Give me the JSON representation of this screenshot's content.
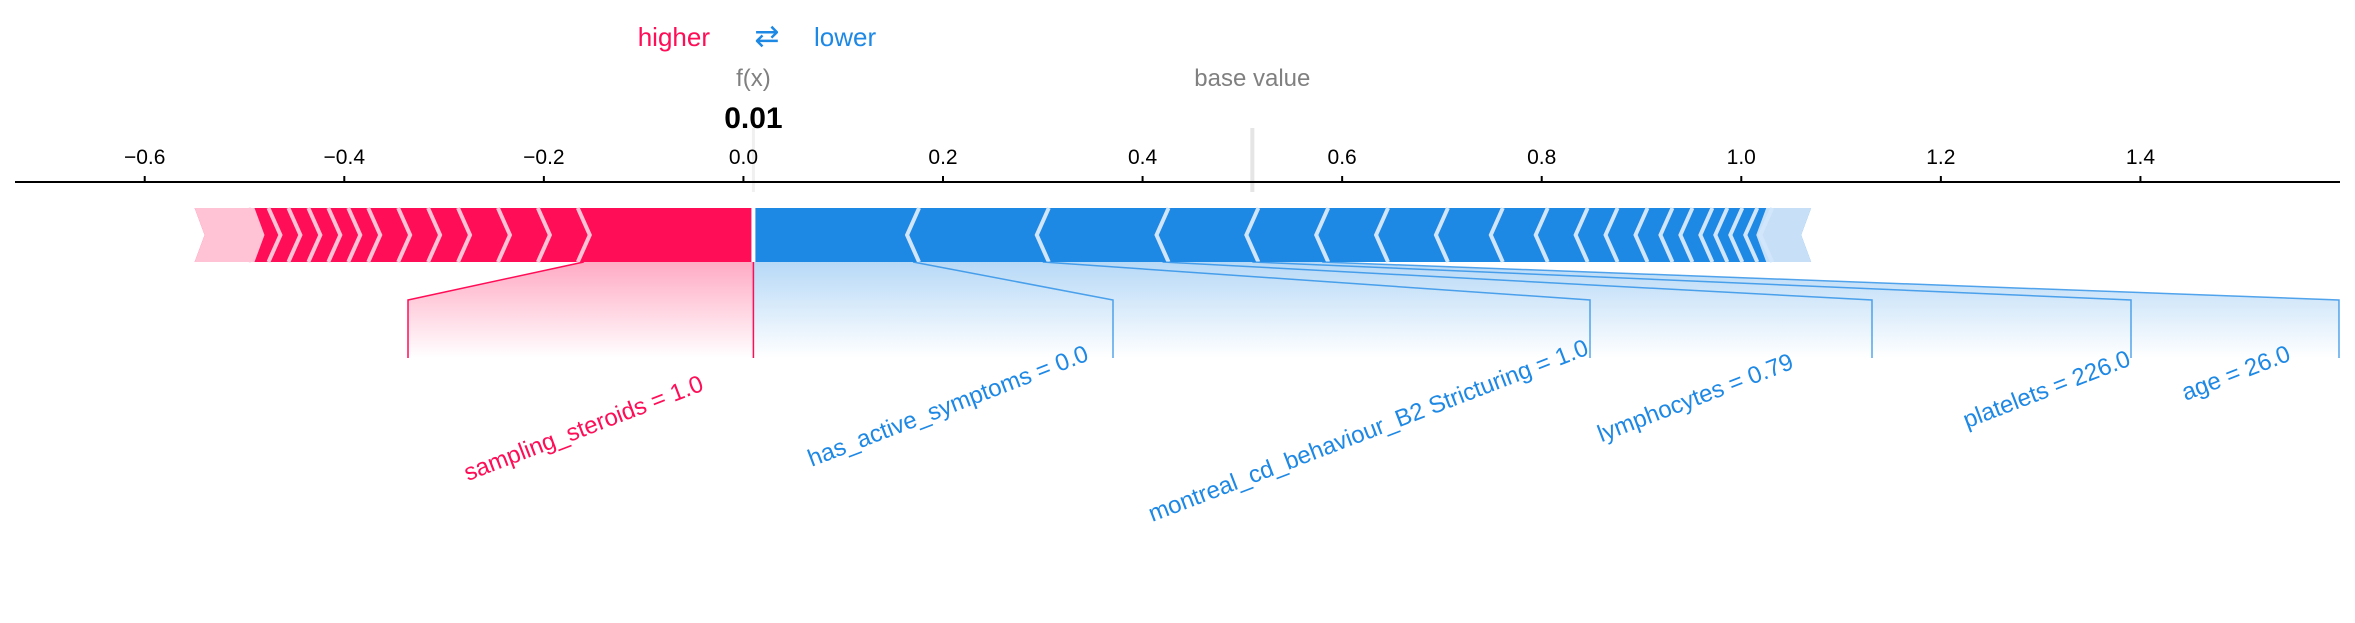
{
  "legend": {
    "higher_label": "higher",
    "lower_label": "lower",
    "arrows_glyph": "⇄",
    "higher_color": "#ff0d57",
    "lower_color": "#1e88e5"
  },
  "output": {
    "fx_label": "f(x)",
    "fx_value_label": "0.01",
    "base_value_label": "base value"
  },
  "chart_data": {
    "type": "force",
    "output_value": 0.01,
    "base_value": 0.51,
    "xlim": [
      -0.73,
      1.6
    ],
    "ticks": [
      -0.6,
      -0.4,
      -0.2,
      0.0,
      0.2,
      0.4,
      0.6,
      0.8,
      1.0,
      1.2,
      1.4
    ],
    "tick_labels": [
      "−0.6",
      "−0.4",
      "−0.2",
      "0.0",
      "0.2",
      "0.4",
      "0.6",
      "0.8",
      "1.0",
      "1.2",
      "1.4"
    ],
    "colors": {
      "higher": "#ff0d57",
      "lower": "#1e88e5"
    },
    "higher_features": [
      {
        "label": "sampling_steroids = 1.0",
        "start": -0.16,
        "end": 0.01
      },
      {
        "start": -0.2,
        "end": -0.16
      },
      {
        "start": -0.24,
        "end": -0.2
      },
      {
        "start": -0.28,
        "end": -0.24
      },
      {
        "start": -0.31,
        "end": -0.28
      },
      {
        "start": -0.34,
        "end": -0.31
      },
      {
        "start": -0.37,
        "end": -0.34
      },
      {
        "start": -0.39,
        "end": -0.37
      },
      {
        "start": -0.41,
        "end": -0.39
      },
      {
        "start": -0.43,
        "end": -0.41
      },
      {
        "start": -0.45,
        "end": -0.43
      },
      {
        "start": -0.47,
        "end": -0.45
      },
      {
        "start": -0.49,
        "end": -0.47
      },
      {
        "start": -0.55,
        "end": -0.49
      }
    ],
    "lower_features": [
      {
        "label": "has_active_symptoms = 0.0",
        "start": 0.01,
        "end": 0.17
      },
      {
        "label": "montreal_cd_behaviour_B2 Stricturing = 1.0",
        "start": 0.17,
        "end": 0.3
      },
      {
        "label": "lymphocytes = 0.79",
        "start": 0.3,
        "end": 0.42
      },
      {
        "label": "platelets = 226.0",
        "start": 0.42,
        "end": 0.51
      },
      {
        "label": "age = 26.0",
        "start": 0.51,
        "end": 0.58
      },
      {
        "start": 0.58,
        "end": 0.64
      },
      {
        "start": 0.64,
        "end": 0.7
      },
      {
        "start": 0.7,
        "end": 0.755
      },
      {
        "start": 0.755,
        "end": 0.8
      },
      {
        "start": 0.8,
        "end": 0.84
      },
      {
        "start": 0.84,
        "end": 0.87
      },
      {
        "start": 0.87,
        "end": 0.9
      },
      {
        "start": 0.9,
        "end": 0.925
      },
      {
        "start": 0.925,
        "end": 0.945
      },
      {
        "start": 0.945,
        "end": 0.965
      },
      {
        "start": 0.965,
        "end": 0.98
      },
      {
        "start": 0.98,
        "end": 0.995
      },
      {
        "start": 0.995,
        "end": 1.01
      },
      {
        "start": 1.01,
        "end": 1.025
      },
      {
        "start": 1.025,
        "end": 1.07
      }
    ]
  }
}
